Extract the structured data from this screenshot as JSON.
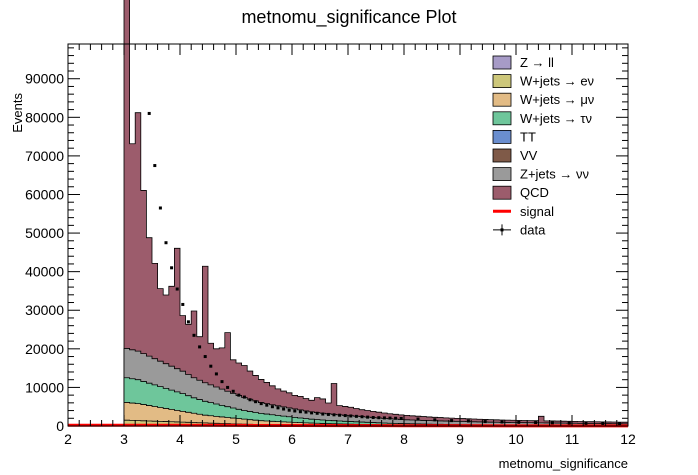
{
  "chart_data": {
    "type": "bar",
    "title": "metnomu_significance Plot",
    "xlabel": "metnomu_significance",
    "ylabel": "Events",
    "xlim": [
      2,
      12
    ],
    "ylim": [
      0,
      99000
    ],
    "x_ticks": [
      "2",
      "3",
      "4",
      "5",
      "6",
      "7",
      "8",
      "9",
      "10",
      "11",
      "12"
    ],
    "y_ticks": [
      "0",
      "10000",
      "20000",
      "30000",
      "40000",
      "50000",
      "60000",
      "70000",
      "80000",
      "90000"
    ],
    "y_tick_values": [
      0,
      10000,
      20000,
      30000,
      40000,
      50000,
      60000,
      70000,
      80000,
      90000
    ],
    "grid": false,
    "legend_position": "top-right",
    "bin_width": 0.1,
    "stack_start": 3.0,
    "legend": [
      {
        "label": "Z → ll",
        "color": "#a79bc7",
        "kind": "fill"
      },
      {
        "label": "W+jets → eν",
        "color": "#cdc77a",
        "kind": "fill"
      },
      {
        "label": "W+jets → μν",
        "color": "#e2bb85",
        "kind": "fill"
      },
      {
        "label": "W+jets → τν",
        "color": "#6ec69b",
        "kind": "fill"
      },
      {
        "label": "TT",
        "color": "#6a8ecf",
        "kind": "fill"
      },
      {
        "label": "VV",
        "color": "#7f5a48",
        "kind": "fill"
      },
      {
        "label": "Z+jets → νν",
        "color": "#9a9a9a",
        "kind": "fill"
      },
      {
        "label": "QCD",
        "color": "#9c5c6c",
        "kind": "fill"
      },
      {
        "label": "signal",
        "color": "#ff0000",
        "kind": "line"
      },
      {
        "label": "data",
        "color": "#000000",
        "kind": "marker"
      }
    ],
    "series": [
      {
        "name": "QCD",
        "color": "#9c5c6c",
        "values": [
          93800,
          53400,
          61800,
          42300,
          30700,
          24700,
          18800,
          17800,
          20700,
          31200,
          14400,
          13000,
          17300,
          11300,
          30200,
          10800,
          9900,
          10700,
          15200,
          8700,
          8400,
          8300,
          7300,
          6600,
          6000,
          5500,
          4900,
          4400,
          4100,
          3900,
          3500,
          3500,
          3200,
          3000,
          3900,
          3700,
          2800,
          8000,
          2400,
          2300,
          2200,
          2000,
          1800,
          1700,
          1600,
          1500,
          1400,
          1300,
          1250,
          1200,
          1150,
          1100,
          1050,
          1000,
          950,
          900,
          870,
          840,
          800,
          780,
          760,
          740,
          720,
          700,
          680,
          660,
          640,
          620,
          600,
          590,
          580,
          570,
          560,
          550,
          1700,
          540,
          530,
          520,
          510,
          500,
          490,
          480,
          470,
          460,
          460,
          450,
          450,
          440,
          440,
          430
        ]
      },
      {
        "name": "Z+jets → νν",
        "color": "#9a9a9a",
        "values": [
          7600,
          7500,
          7400,
          7200,
          7000,
          6800,
          6600,
          6400,
          6200,
          6000,
          5800,
          5500,
          5200,
          5000,
          4800,
          4600,
          4400,
          4200,
          4000,
          3800,
          3600,
          3400,
          3200,
          3000,
          2800,
          2700,
          2600,
          2500,
          2400,
          2300,
          2200,
          2100,
          2000,
          1900,
          1800,
          1750,
          1700,
          1650,
          1600,
          1550,
          1500,
          1450,
          1400,
          1350,
          1300,
          1250,
          1200,
          1150,
          1100,
          1050,
          1000,
          980,
          960,
          940,
          920,
          900,
          880,
          860,
          840,
          820,
          800,
          780,
          760,
          740,
          720,
          700,
          690,
          680,
          670,
          660,
          650,
          640,
          630,
          620,
          610,
          600,
          590,
          580,
          570,
          560,
          550,
          540,
          530,
          520,
          510,
          500,
          490,
          480,
          470,
          460
        ]
      },
      {
        "name": "W+jets → τν",
        "color": "#6ec69b",
        "values": [
          6400,
          6300,
          6200,
          6000,
          5800,
          5600,
          5400,
          5200,
          5000,
          4800,
          4600,
          4300,
          4000,
          3800,
          3600,
          3400,
          3200,
          3000,
          2800,
          2600,
          2400,
          2200,
          2100,
          2000,
          1900,
          1800,
          1700,
          1600,
          1500,
          1400,
          1300,
          1200,
          1100,
          1000,
          950,
          900,
          850,
          800,
          760,
          720,
          680,
          640,
          600,
          560,
          520,
          480,
          450,
          420,
          400,
          380,
          360,
          340,
          320,
          300,
          290,
          280,
          270,
          260,
          250,
          240,
          230,
          220,
          210,
          200,
          195,
          190,
          185,
          180,
          175,
          170,
          165,
          160,
          155,
          150,
          145,
          140,
          135,
          130,
          125,
          120,
          115,
          110,
          105,
          100,
          95,
          90,
          85,
          80,
          75,
          70
        ]
      },
      {
        "name": "W+jets → μν",
        "color": "#e2bb85",
        "values": [
          4600,
          4500,
          4400,
          4200,
          4000,
          3800,
          3600,
          3400,
          3200,
          3000,
          2800,
          2600,
          2400,
          2200,
          2000,
          1900,
          1800,
          1700,
          1600,
          1500,
          1400,
          1300,
          1200,
          1100,
          1000,
          950,
          900,
          850,
          800,
          760,
          720,
          680,
          640,
          600,
          560,
          520,
          480,
          450,
          420,
          400,
          380,
          360,
          340,
          320,
          300,
          280,
          260,
          240,
          220,
          200,
          190,
          180,
          170,
          160,
          150,
          140,
          130,
          120,
          115,
          110,
          105,
          100,
          95,
          90,
          85,
          80,
          75,
          70,
          65,
          60,
          55,
          50,
          48,
          46,
          44,
          42,
          40,
          38,
          36,
          34,
          32,
          30,
          28,
          26,
          24,
          22,
          20,
          18,
          16,
          14
        ]
      },
      {
        "name": "W+jets → eν",
        "color": "#cdc77a",
        "values": [
          1500,
          1450,
          1400,
          1350,
          1300,
          1250,
          1200,
          1150,
          1100,
          1050,
          1000,
          950,
          900,
          850,
          800,
          750,
          700,
          650,
          600,
          560,
          520,
          480,
          440,
          400,
          370,
          340,
          310,
          280,
          260,
          240,
          220,
          200,
          180,
          160,
          150,
          140,
          130,
          120,
          110,
          100,
          95,
          90,
          85,
          80,
          75,
          70,
          65,
          60,
          55,
          50,
          48,
          46,
          44,
          42,
          40,
          38,
          36,
          34,
          32,
          30,
          28,
          26,
          24,
          22,
          20,
          18,
          16,
          14,
          12,
          10,
          10,
          10,
          10,
          10,
          10,
          10,
          10,
          10,
          10,
          10,
          10,
          10,
          10,
          10,
          10,
          10,
          10,
          10,
          10,
          10
        ]
      }
    ],
    "data_points": {
      "color": "#000000",
      "x": [
        3.45,
        3.55,
        3.65,
        3.75,
        3.85,
        3.95,
        4.05,
        4.15,
        4.25,
        4.35,
        4.45,
        4.55,
        4.65,
        4.75,
        4.85,
        4.95,
        5.05,
        5.15,
        5.25,
        5.35,
        5.45,
        5.55,
        5.65,
        5.75,
        5.85,
        5.95,
        6.05,
        6.15,
        6.25,
        6.35,
        6.45,
        6.55,
        6.65,
        6.75,
        6.85,
        6.95,
        7.05,
        7.15,
        7.25,
        7.35,
        7.45,
        7.55,
        7.65,
        7.75,
        7.85,
        7.95,
        8.25,
        8.55,
        8.85,
        9.15,
        9.45,
        9.75,
        10.05,
        10.35,
        10.65,
        10.95,
        11.25,
        11.55,
        11.85
      ],
      "y": [
        81000,
        67500,
        56500,
        47500,
        41000,
        35500,
        31500,
        27000,
        23500,
        20500,
        18000,
        15500,
        13500,
        11500,
        10000,
        9000,
        8000,
        7500,
        6800,
        6300,
        5800,
        5400,
        5000,
        4700,
        4400,
        4100,
        3900,
        3700,
        3600,
        3400,
        3300,
        3100,
        3000,
        2900,
        2800,
        2700,
        2600,
        2500,
        2400,
        2300,
        2200,
        2150,
        2100,
        2050,
        2000,
        1950,
        1800,
        1600,
        1400,
        1300,
        1150,
        1050,
        950,
        880,
        820,
        760,
        700,
        660,
        620
      ]
    },
    "signal": {
      "color": "#ff0000",
      "x": [
        2.0,
        3.0,
        4.0,
        5.0,
        6.0,
        7.0,
        8.0,
        9.0,
        10.0,
        11.0,
        12.0
      ],
      "y": [
        200,
        200,
        180,
        150,
        120,
        100,
        80,
        60,
        40,
        30,
        20
      ]
    }
  }
}
